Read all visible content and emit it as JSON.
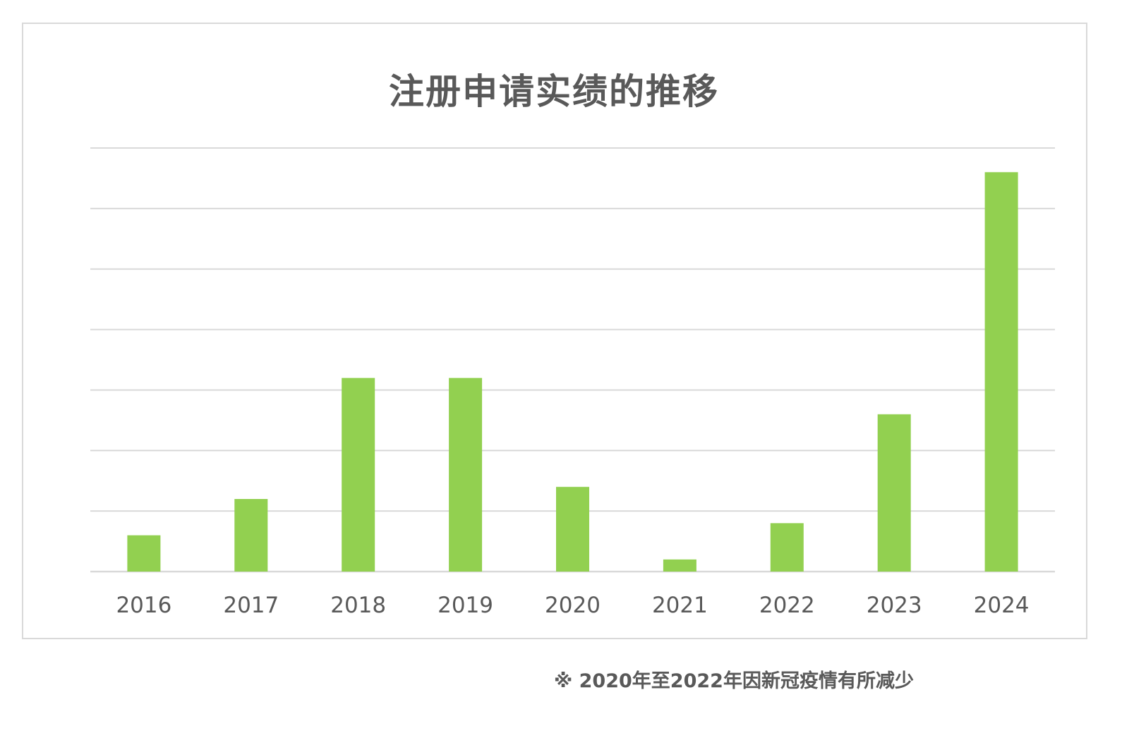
{
  "chart_data": {
    "type": "bar",
    "title": "注册申请实绩的推移",
    "categories": [
      "2016",
      "2017",
      "2018",
      "2019",
      "2020",
      "2021",
      "2022",
      "2023",
      "2024"
    ],
    "values": [
      3,
      6,
      16,
      16,
      7,
      1,
      4,
      13,
      33
    ],
    "ylim": [
      0,
      35
    ],
    "gridlines": 7,
    "xlabel": "",
    "ylabel": "",
    "grid": true,
    "bar_color": "#92d050",
    "grid_color": "#d9d9d9"
  },
  "footnote": "※ 2020年至2022年因新冠疫情有所减少"
}
